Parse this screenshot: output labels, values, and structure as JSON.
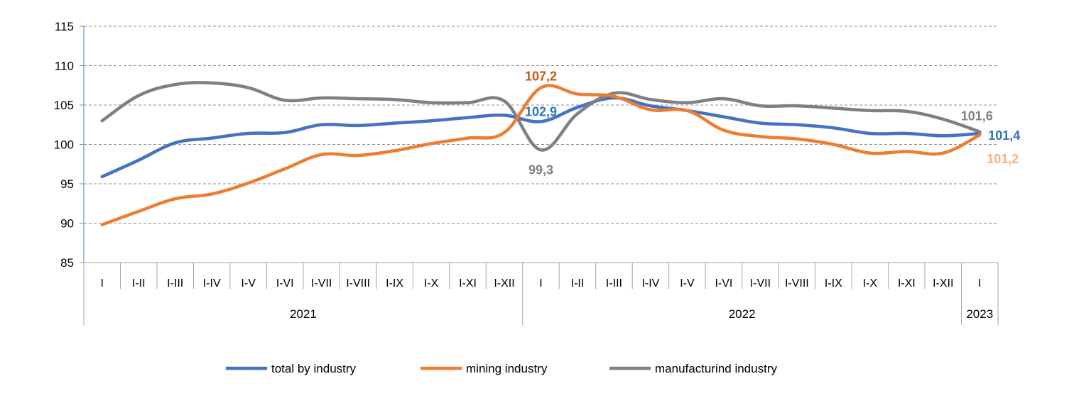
{
  "chart_data": {
    "type": "line",
    "title": "",
    "xlabel": "",
    "ylabel": "",
    "ylim": [
      85,
      115
    ],
    "yticks": [
      85,
      90,
      95,
      100,
      105,
      110,
      115
    ],
    "grid": "horizontal dashed",
    "legend_position": "bottom",
    "categories": [
      "I",
      "I-II",
      "I-III",
      "I-IV",
      "I-V",
      "I-VI",
      "I-VII",
      "I-VIII",
      "I-IX",
      "I-X",
      "I-XI",
      "I-XII",
      "I",
      "I-II",
      "I-III",
      "I-IV",
      "I-V",
      "I-VI",
      "I-VII",
      "I-VIII",
      "I-IX",
      "I-X",
      "I-XI",
      "I-XII",
      "I"
    ],
    "groups": [
      {
        "label": "2021",
        "count": 12
      },
      {
        "label": "2022",
        "count": 12
      },
      {
        "label": "2023",
        "count": 1
      }
    ],
    "series": [
      {
        "name": "total by industry",
        "color": "#4472C4",
        "values": [
          95.9,
          98.0,
          100.2,
          100.8,
          101.4,
          101.5,
          102.5,
          102.4,
          102.7,
          103.0,
          103.4,
          103.7,
          102.9,
          104.7,
          105.9,
          104.9,
          104.3,
          103.5,
          102.7,
          102.5,
          102.1,
          101.4,
          101.4,
          101.1,
          101.4
        ]
      },
      {
        "name": "mining industry",
        "color": "#ED7D31",
        "values": [
          89.8,
          91.5,
          93.1,
          93.7,
          95.1,
          96.9,
          98.7,
          98.6,
          99.2,
          100.1,
          100.8,
          101.5,
          107.2,
          106.4,
          106.1,
          104.4,
          104.3,
          101.8,
          101.0,
          100.7,
          100.0,
          98.9,
          99.1,
          98.9,
          101.2
        ]
      },
      {
        "name": "manufacturind industry",
        "color": "#808080",
        "values": [
          103.0,
          106.2,
          107.6,
          107.8,
          107.2,
          105.6,
          105.9,
          105.8,
          105.7,
          105.3,
          105.3,
          105.5,
          99.3,
          103.9,
          106.5,
          105.7,
          105.3,
          105.8,
          104.9,
          104.9,
          104.6,
          104.3,
          104.2,
          103.2,
          101.6
        ]
      }
    ],
    "annotations": [
      {
        "text": "102,9",
        "series": 0,
        "index": 12,
        "color": "#2E75B6"
      },
      {
        "text": "107,2",
        "series": 1,
        "index": 12,
        "color": "#C55A11"
      },
      {
        "text": "99,3",
        "series": 2,
        "index": 12,
        "color": "#7F7F7F"
      },
      {
        "text": "101,6",
        "series": 2,
        "index": 24,
        "color": "#7F7F7F"
      },
      {
        "text": "101,4",
        "series": 0,
        "index": 24,
        "color": "#2E75B6"
      },
      {
        "text": "101,2",
        "series": 1,
        "index": 24,
        "color": "#F4B183"
      }
    ]
  }
}
